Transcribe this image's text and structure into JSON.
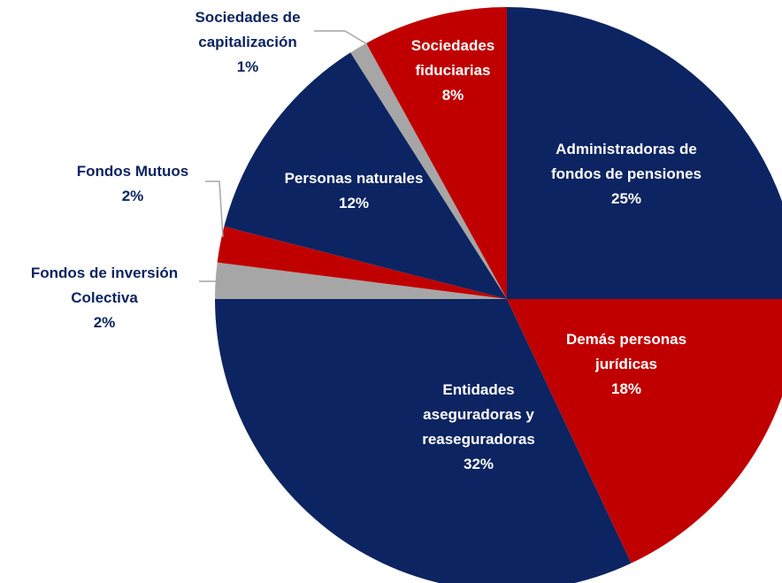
{
  "chart_data": {
    "type": "pie",
    "categories": [
      "Administradoras de fondos de pensiones",
      "Demás personas jurídicas",
      "Entidades aseguradoras y reaseguradoras",
      "Fondos de inversión Colectiva",
      "Fondos Mutuos",
      "Personas naturales",
      "Sociedades de capitalización",
      "Sociedades fiduciarias"
    ],
    "values": [
      25,
      18,
      32,
      2,
      2,
      12,
      1,
      8
    ],
    "value_labels": [
      "25%",
      "18%",
      "32%",
      "2%",
      "2%",
      "12%",
      "1%",
      "8%"
    ],
    "colors": [
      "#0c2461",
      "#c00000",
      "#0c2461",
      "#a6a6a6",
      "#c00000",
      "#0c2461",
      "#a6a6a6",
      "#c00000"
    ]
  }
}
